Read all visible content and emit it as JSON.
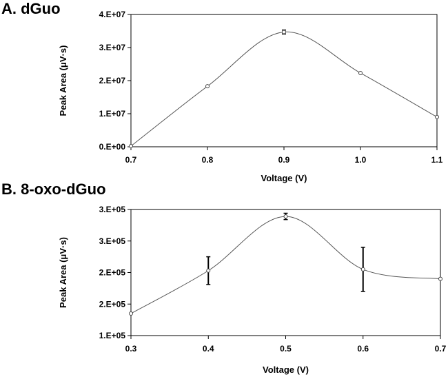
{
  "chart_data": [
    {
      "type": "line",
      "panel_label": "A. dGuo",
      "xlabel": "Voltage (V)",
      "ylabel": "Peak Area (μV·s)",
      "xlim": [
        0.7,
        1.1
      ],
      "ylim": [
        0,
        40000000
      ],
      "x_ticks": [
        0.7,
        0.8,
        0.9,
        1.0,
        1.1
      ],
      "x_tick_labels": [
        "0.7",
        "0.8",
        "0.9",
        "1.0",
        "1.1"
      ],
      "y_ticks": [
        0,
        10000000,
        20000000,
        30000000,
        40000000
      ],
      "y_tick_labels": [
        "0.E+00",
        "1.E+07",
        "2.E+07",
        "3.E+07",
        "4.E+07"
      ],
      "series": [
        {
          "name": "dGuo",
          "x": [
            0.7,
            0.8,
            0.9,
            1.0,
            1.1
          ],
          "y": [
            200000,
            18300000,
            34700000,
            22300000,
            9000000
          ],
          "err": [
            0,
            0,
            600000,
            0,
            0
          ]
        }
      ]
    },
    {
      "type": "line",
      "panel_label": "B. 8-oxo-dGuo",
      "xlabel": "Voltage (V)",
      "ylabel": "Peak Area (μV·s)",
      "xlim": [
        0.3,
        0.7
      ],
      "ylim": [
        100000,
        300000
      ],
      "x_ticks": [
        0.3,
        0.4,
        0.5,
        0.6,
        0.7
      ],
      "x_tick_labels": [
        "0.3",
        "0.4",
        "0.5",
        "0.6",
        "0.7"
      ],
      "y_ticks": [
        100000,
        150000,
        200000,
        250000,
        300000
      ],
      "y_tick_labels": [
        "1.E+05",
        "2.E+05",
        "2.E+05",
        "3.E+05",
        "3.E+05"
      ],
      "series": [
        {
          "name": "8-oxo-dGuo",
          "x": [
            0.3,
            0.4,
            0.5,
            0.6,
            0.7
          ],
          "y": [
            135000,
            203000,
            289000,
            205000,
            190000
          ],
          "err": [
            0,
            22000,
            5000,
            35000,
            0
          ]
        }
      ]
    }
  ]
}
